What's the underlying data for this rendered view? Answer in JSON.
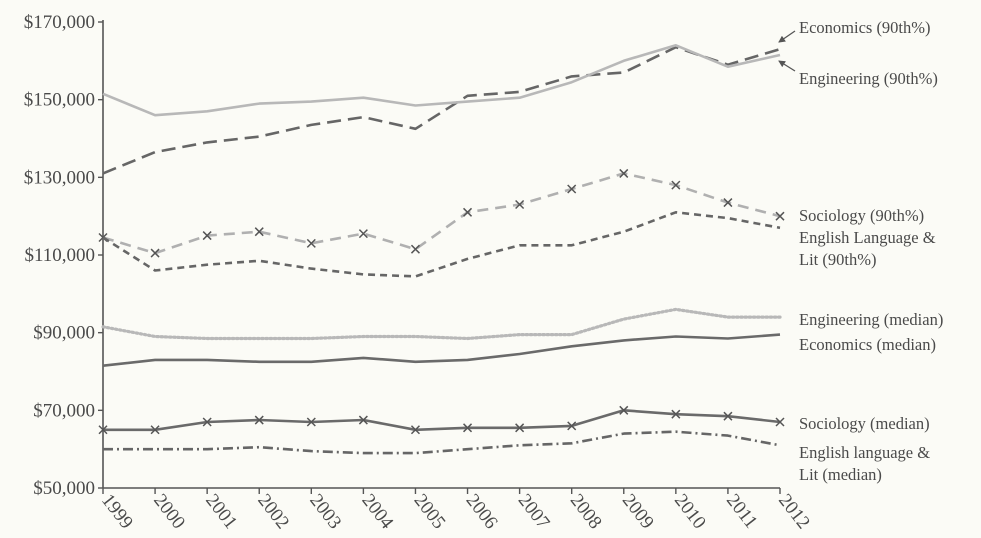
{
  "chart_data": {
    "type": "line",
    "title": "",
    "xlabel": "",
    "ylabel": "",
    "ylim": [
      50000,
      170000
    ],
    "grid": false,
    "legend": "direct labels at right of lines",
    "x": [
      1999,
      2000,
      2001,
      2002,
      2003,
      2004,
      2005,
      2006,
      2007,
      2008,
      2009,
      2010,
      2011,
      2012
    ],
    "x_tick_labels": [
      "1999",
      "2000",
      "2001",
      "2002",
      "2003",
      "2004",
      "2005",
      "2006",
      "2007",
      "2008",
      "2009",
      "2010",
      "2011",
      "2012"
    ],
    "y_ticks": [
      50000,
      70000,
      90000,
      110000,
      130000,
      150000,
      170000
    ],
    "y_tick_labels": [
      "$50,000",
      "$70,000",
      "$90,000",
      "$110,000",
      "$130,000",
      "$150,000",
      "$170,000"
    ],
    "series": [
      {
        "key": "econ90",
        "name": "Economics (90th%)",
        "label_lines": [
          "Economics (90th%)"
        ],
        "color": "#666666",
        "style": "long-dash",
        "marker": "",
        "values": [
          131000,
          136500,
          139000,
          140500,
          143500,
          145500,
          142500,
          151000,
          152000,
          156000,
          157000,
          163500,
          159000,
          163000
        ]
      },
      {
        "key": "eng90",
        "name": "Engineering (90th%)",
        "label_lines": [
          "Engineering (90th%)"
        ],
        "color": "#b8b8b8",
        "style": "solid",
        "marker": "",
        "values": [
          151500,
          146000,
          147000,
          149000,
          149500,
          150500,
          148500,
          149500,
          150500,
          154500,
          160000,
          164000,
          158500,
          161500
        ]
      },
      {
        "key": "soc90",
        "name": "Sociology (90th%)",
        "label_lines": [
          "Sociology (90th%)"
        ],
        "color": "#b0b0b0",
        "style": "dash",
        "marker": "x",
        "values": [
          114500,
          110500,
          115000,
          116000,
          113000,
          115500,
          111500,
          121000,
          123000,
          127000,
          131000,
          128000,
          123500,
          120000
        ]
      },
      {
        "key": "eng_lit90",
        "name": "English Language & Lit (90th%)",
        "label_lines": [
          "English Language &",
          "Lit (90th%)"
        ],
        "color": "#666666",
        "style": "short-dash",
        "marker": "",
        "values": [
          114500,
          106000,
          107500,
          108500,
          106500,
          105000,
          104500,
          109000,
          112500,
          112500,
          116000,
          121000,
          119500,
          117000
        ]
      },
      {
        "key": "eng_med",
        "name": "Engineering (median)",
        "label_lines": [
          "Engineering (median)"
        ],
        "color": "#b8b8b8",
        "style": "dotted",
        "marker": "",
        "values": [
          91500,
          89000,
          88500,
          88500,
          88500,
          89000,
          89000,
          88500,
          89500,
          89500,
          93500,
          96000,
          94000,
          94000
        ]
      },
      {
        "key": "econ_med",
        "name": "Economics (median)",
        "label_lines": [
          "Economics (median)"
        ],
        "color": "#6a6a6a",
        "style": "solid",
        "marker": "",
        "values": [
          81500,
          83000,
          83000,
          82500,
          82500,
          83500,
          82500,
          83000,
          84500,
          86500,
          88000,
          89000,
          88500,
          89500
        ]
      },
      {
        "key": "soc_med",
        "name": "Sociology (median)",
        "label_lines": [
          "Sociology (median)"
        ],
        "color": "#6a6a6a",
        "style": "solid",
        "marker": "x",
        "values": [
          65000,
          65000,
          67000,
          67500,
          67000,
          67500,
          65000,
          65500,
          65500,
          66000,
          70000,
          69000,
          68500,
          67000
        ]
      },
      {
        "key": "eng_lit_med",
        "name": "English language & Lit (median)",
        "label_lines": [
          "English language &",
          "Lit (median)"
        ],
        "color": "#666666",
        "style": "dash-dot",
        "marker": "",
        "values": [
          60000,
          60000,
          60000,
          60500,
          59500,
          59000,
          59000,
          60000,
          61000,
          61500,
          64000,
          64500,
          63500,
          61000
        ]
      }
    ]
  }
}
